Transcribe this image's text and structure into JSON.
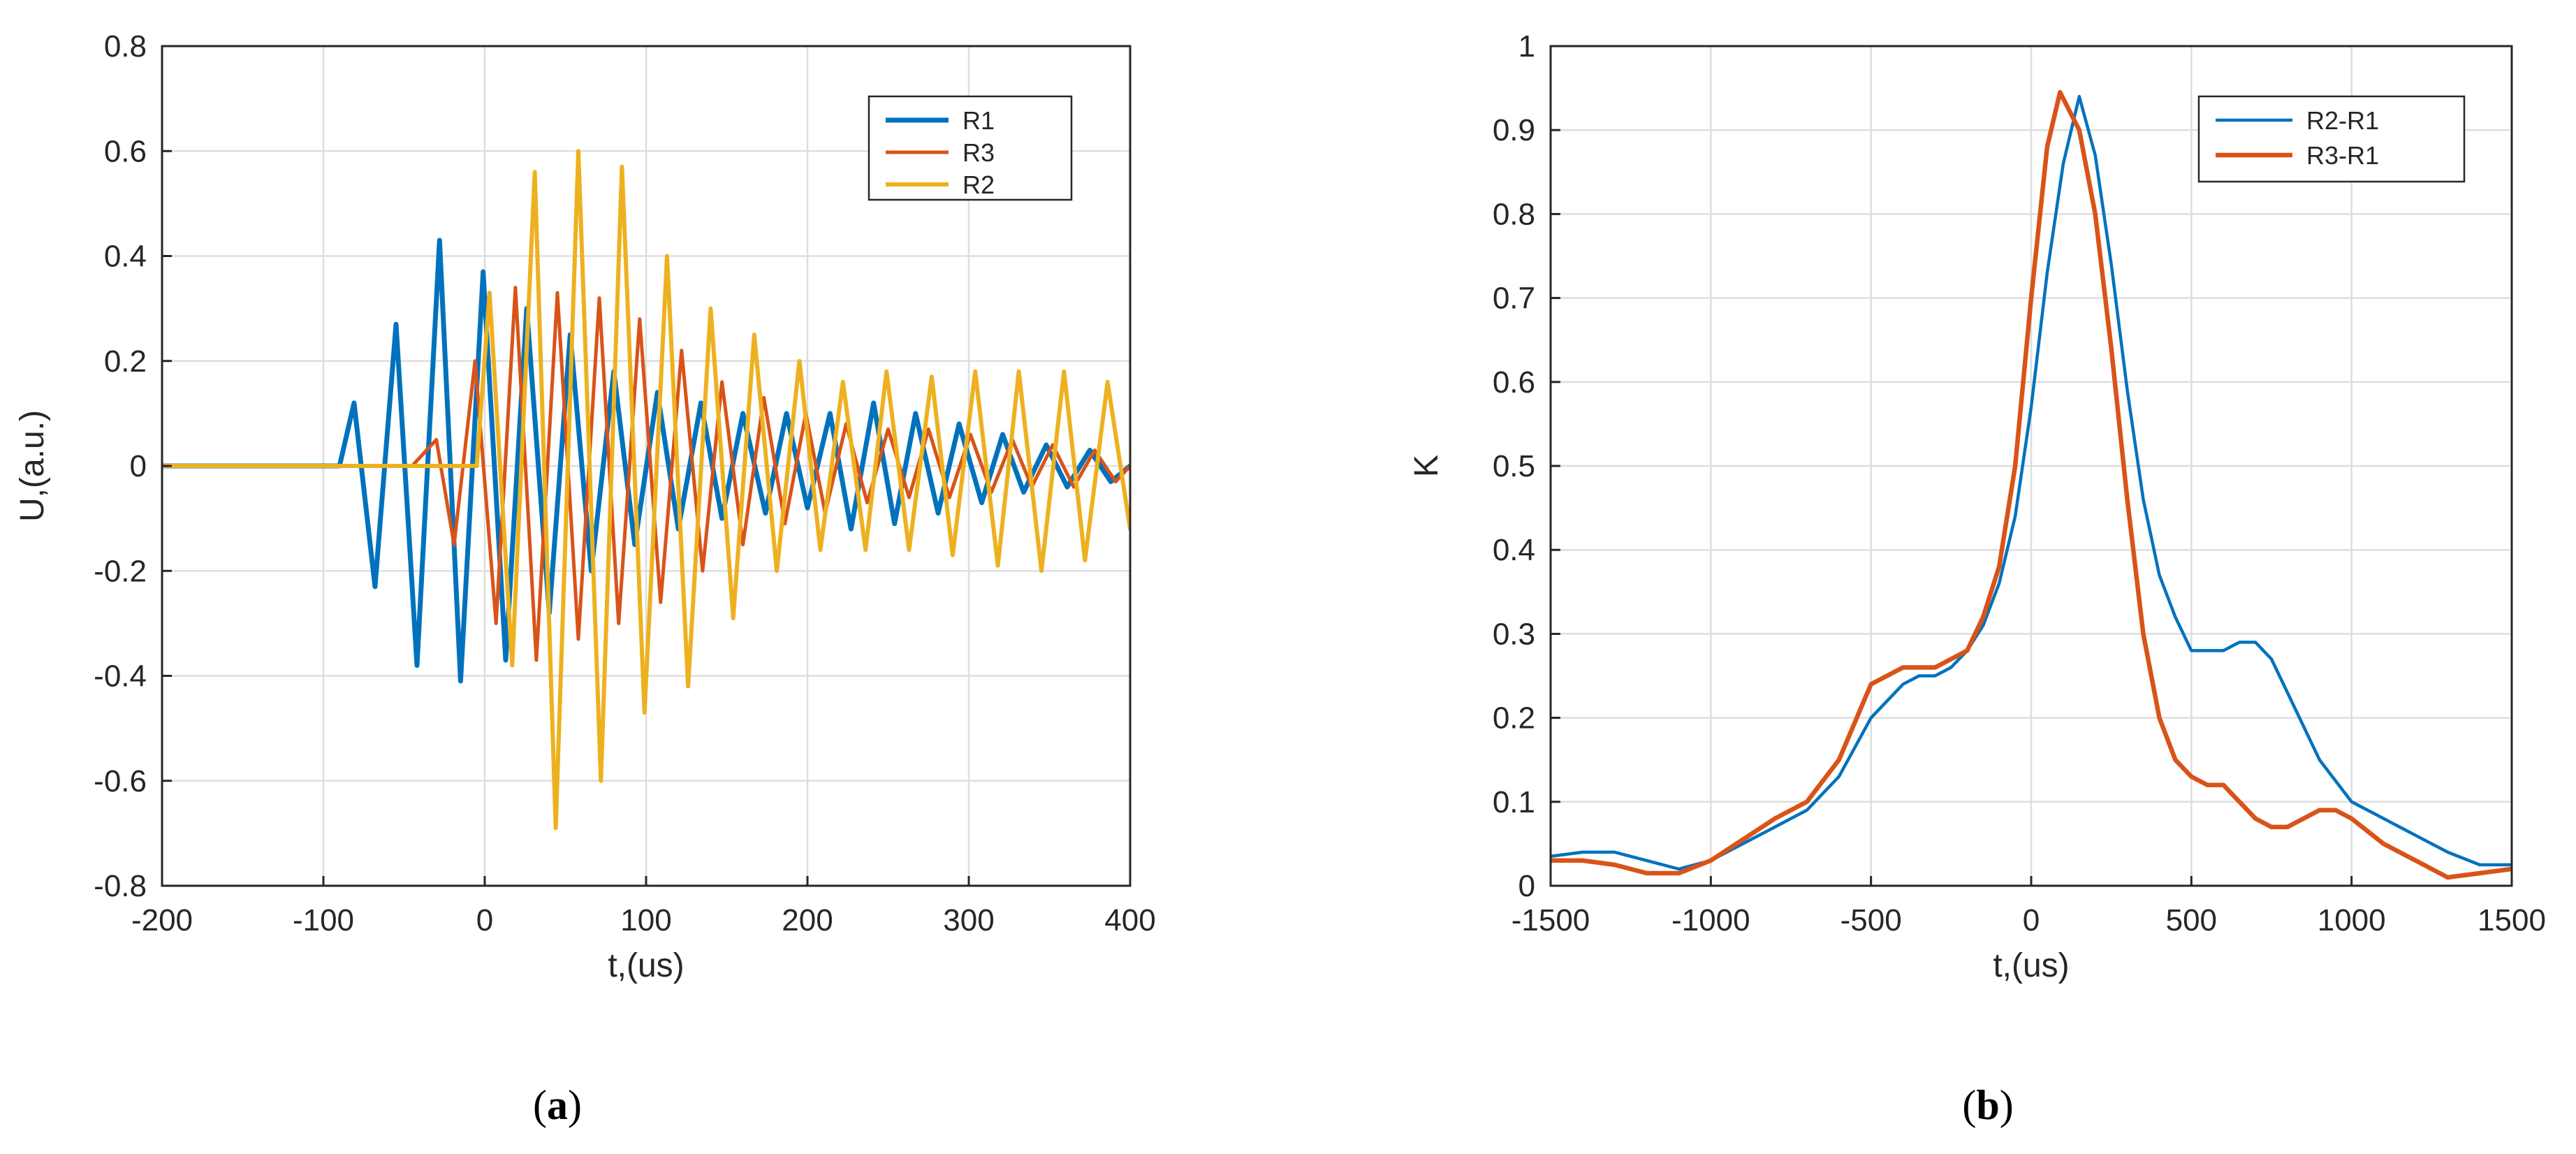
{
  "chart_data": [
    {
      "type": "line",
      "panel_label": "a",
      "xlabel": "t,(us)",
      "ylabel": "U,(a.u.)",
      "xlim": [
        -200,
        400
      ],
      "ylim": [
        -0.8,
        0.8
      ],
      "xticks": [
        -200,
        -100,
        0,
        100,
        200,
        300,
        400
      ],
      "xtick_labels": [
        "-200",
        "-100",
        "0",
        "100",
        "200",
        "300",
        "400"
      ],
      "yticks": [
        -0.8,
        -0.6,
        -0.4,
        -0.2,
        0,
        0.2,
        0.4,
        0.6,
        0.8
      ],
      "ytick_labels": [
        "-0.8",
        "-0.6",
        "-0.4",
        "-0.2",
        "0",
        "0.2",
        "0.4",
        "0.6",
        "0.8"
      ],
      "grid": true,
      "legend_position": "top-right",
      "series": [
        {
          "name": "R1",
          "color": "#0072BD",
          "x": [
            -200,
            -90,
            -81,
            -68,
            -55,
            -42,
            -28,
            -15,
            -1,
            13,
            26,
            40,
            53,
            66,
            80,
            93,
            107,
            120,
            134,
            147,
            160,
            174,
            187,
            200,
            214,
            227,
            241,
            254,
            267,
            281,
            294,
            308,
            321,
            334,
            348,
            361,
            375,
            388,
            400
          ],
          "y": [
            0,
            0,
            0.12,
            -0.23,
            0.27,
            -0.38,
            0.43,
            -0.41,
            0.37,
            -0.37,
            0.3,
            -0.28,
            0.25,
            -0.2,
            0.18,
            -0.15,
            0.14,
            -0.12,
            0.12,
            -0.1,
            0.1,
            -0.09,
            0.1,
            -0.08,
            0.1,
            -0.12,
            0.12,
            -0.11,
            0.1,
            -0.09,
            0.08,
            -0.07,
            0.06,
            -0.05,
            0.04,
            -0.04,
            0.03,
            -0.03,
            0
          ]
        },
        {
          "name": "R3",
          "color": "#D95319",
          "x": [
            -200,
            -45,
            -30,
            -19,
            -6,
            7,
            19,
            32,
            45,
            58,
            71,
            83,
            96,
            109,
            122,
            135,
            147,
            160,
            173,
            186,
            199,
            211,
            224,
            237,
            250,
            263,
            275,
            288,
            301,
            314,
            327,
            339,
            352,
            365,
            378,
            391,
            400
          ],
          "y": [
            0,
            0,
            0.05,
            -0.15,
            0.2,
            -0.3,
            0.34,
            -0.37,
            0.33,
            -0.33,
            0.32,
            -0.3,
            0.28,
            -0.26,
            0.22,
            -0.2,
            0.16,
            -0.15,
            0.13,
            -0.11,
            0.1,
            -0.09,
            0.08,
            -0.07,
            0.07,
            -0.06,
            0.07,
            -0.06,
            0.06,
            -0.05,
            0.05,
            -0.04,
            0.04,
            -0.04,
            0.03,
            -0.03,
            0
          ]
        },
        {
          "name": "R2",
          "color": "#EDB120",
          "x": [
            -200,
            -5,
            3,
            17,
            31,
            44,
            58,
            72,
            85,
            99,
            113,
            126,
            140,
            154,
            167,
            181,
            195,
            208,
            222,
            236,
            249,
            263,
            277,
            290,
            304,
            318,
            331,
            345,
            359,
            372,
            386,
            400
          ],
          "y": [
            0,
            0,
            0.33,
            -0.38,
            0.56,
            -0.69,
            0.6,
            -0.6,
            0.57,
            -0.47,
            0.4,
            -0.42,
            0.3,
            -0.29,
            0.25,
            -0.2,
            0.2,
            -0.16,
            0.16,
            -0.16,
            0.18,
            -0.16,
            0.17,
            -0.17,
            0.18,
            -0.19,
            0.18,
            -0.2,
            0.18,
            -0.18,
            0.16,
            -0.12
          ]
        }
      ]
    },
    {
      "type": "line",
      "panel_label": "b",
      "xlabel": "t,(us)",
      "ylabel": "K",
      "xlim": [
        -1500,
        1500
      ],
      "ylim": [
        0,
        1
      ],
      "xticks": [
        -1500,
        -1000,
        -500,
        0,
        500,
        1000,
        1500
      ],
      "xtick_labels": [
        "-1500",
        "-1000",
        "-500",
        "0",
        "500",
        "1000",
        "1500"
      ],
      "yticks": [
        0,
        0.1,
        0.2,
        0.3,
        0.4,
        0.5,
        0.6,
        0.7,
        0.8,
        0.9,
        1
      ],
      "ytick_labels": [
        "0",
        "0.1",
        "0.2",
        "0.3",
        "0.4",
        "0.5",
        "0.6",
        "0.7",
        "0.8",
        "0.9",
        "1"
      ],
      "grid": true,
      "legend_position": "top-right",
      "series": [
        {
          "name": "R2-R1",
          "color": "#0072BD",
          "x": [
            -1500,
            -1400,
            -1300,
            -1200,
            -1100,
            -1000,
            -900,
            -800,
            -700,
            -600,
            -500,
            -400,
            -350,
            -300,
            -250,
            -200,
            -150,
            -100,
            -50,
            0,
            50,
            100,
            150,
            200,
            250,
            300,
            350,
            400,
            450,
            500,
            550,
            600,
            650,
            700,
            750,
            800,
            850,
            900,
            1000,
            1100,
            1200,
            1300,
            1400,
            1500
          ],
          "y": [
            0.035,
            0.04,
            0.04,
            0.03,
            0.02,
            0.03,
            0.05,
            0.07,
            0.09,
            0.13,
            0.2,
            0.24,
            0.25,
            0.25,
            0.26,
            0.28,
            0.31,
            0.36,
            0.44,
            0.57,
            0.73,
            0.86,
            0.94,
            0.87,
            0.74,
            0.59,
            0.46,
            0.37,
            0.32,
            0.28,
            0.28,
            0.28,
            0.29,
            0.29,
            0.27,
            0.23,
            0.19,
            0.15,
            0.1,
            0.08,
            0.06,
            0.04,
            0.025,
            0.025
          ]
        },
        {
          "name": "R3-R1",
          "color": "#D95319",
          "x": [
            -1500,
            -1400,
            -1300,
            -1200,
            -1100,
            -1000,
            -900,
            -800,
            -700,
            -600,
            -500,
            -400,
            -350,
            -300,
            -250,
            -200,
            -150,
            -100,
            -50,
            0,
            50,
            90,
            150,
            200,
            250,
            300,
            350,
            400,
            450,
            500,
            550,
            600,
            650,
            700,
            750,
            800,
            850,
            900,
            950,
            1000,
            1100,
            1200,
            1300,
            1400,
            1500
          ],
          "y": [
            0.03,
            0.03,
            0.025,
            0.015,
            0.015,
            0.03,
            0.055,
            0.08,
            0.1,
            0.15,
            0.24,
            0.26,
            0.26,
            0.26,
            0.27,
            0.28,
            0.32,
            0.38,
            0.5,
            0.7,
            0.88,
            0.945,
            0.9,
            0.8,
            0.64,
            0.46,
            0.3,
            0.2,
            0.15,
            0.13,
            0.12,
            0.12,
            0.1,
            0.08,
            0.07,
            0.07,
            0.08,
            0.09,
            0.09,
            0.08,
            0.05,
            0.03,
            0.01,
            0.015,
            0.02
          ]
        }
      ]
    }
  ]
}
